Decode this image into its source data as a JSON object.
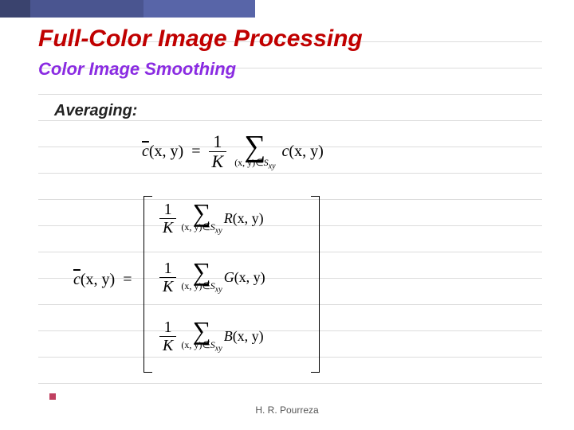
{
  "title": {
    "text": "Full-Color Image Processing",
    "fontsize": 30,
    "color": "#c00000"
  },
  "subtitle": {
    "text": "Color Image Smoothing",
    "fontsize": 22,
    "color": "#8a2be2"
  },
  "section": {
    "text": "Averaging:",
    "fontsize": 20,
    "color": "#222222"
  },
  "footer": {
    "text": "H. R. Pourreza"
  },
  "eq1": {
    "lhs_sym": "c",
    "lhs_args": "(x, y)",
    "frac_num": "1",
    "frac_den": "K",
    "sum_sub_a": "(x, y)",
    "sum_sub_rel": "∈",
    "sum_sub_b": "S",
    "sum_sub_idx": "xy",
    "rhs_sym": "c",
    "rhs_args": "(x, y)"
  },
  "eq2": {
    "lhs_sym": "c",
    "lhs_args": "(x, y)",
    "rows": [
      {
        "frac_num": "1",
        "frac_den": "K",
        "sum_sub_a": "(x, y)",
        "sum_sub_rel": "∈",
        "sum_sub_b": "S",
        "sum_sub_idx": "xy",
        "fn": "R",
        "fn_args": "(x, y)"
      },
      {
        "frac_num": "1",
        "frac_den": "K",
        "sum_sub_a": "(x, y)",
        "sum_sub_rel": "∈",
        "sum_sub_b": "S",
        "sum_sub_idx": "xy",
        "fn": "G",
        "fn_args": "(x, y)"
      },
      {
        "frac_num": "1",
        "frac_den": "K",
        "sum_sub_a": "(x, y)",
        "sum_sub_rel": "∈",
        "sum_sub_b": "S",
        "sum_sub_idx": "xy",
        "fn": "B",
        "fn_args": "(x, y)"
      }
    ]
  },
  "grid": {
    "line_color": "#dcdcdc",
    "spacing": 33,
    "count": 14
  },
  "colors": {
    "bg": "#ffffff"
  }
}
